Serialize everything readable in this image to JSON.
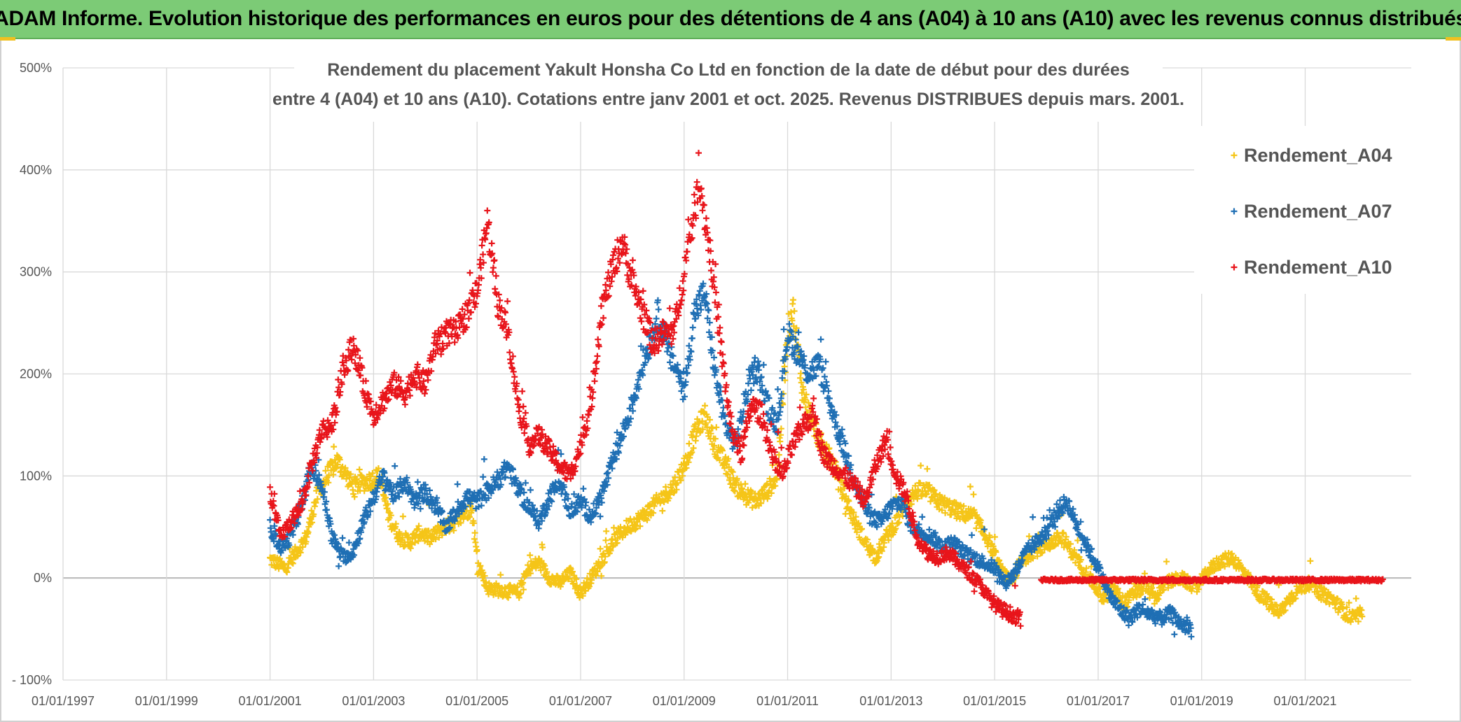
{
  "banner": {
    "title": "ADAM Informe. Evolution historique des performances en euros pour des détentions de 4 ans (A04) à 10 ans (A10) avec les revenus connus distribués"
  },
  "chart_data": {
    "type": "scatter",
    "title_line1": "Rendement du placement Yakult Honsha Co Ltd en fonction de la date de début pour des durées",
    "title_line2": "entre 4 (A04) et 10 ans (A10). Cotations entre janv 2001 et oct. 2025. Revenus DISTRIBUES depuis mars. 2001.",
    "xlabel": "",
    "ylabel": "",
    "x_tick_labels": [
      "01/01/1997",
      "01/01/1999",
      "01/01/2001",
      "01/01/2003",
      "01/01/2005",
      "01/01/2007",
      "01/01/2009",
      "01/01/2011",
      "01/01/2013",
      "01/01/2015",
      "01/01/2017",
      "01/01/2019",
      "01/01/2021"
    ],
    "x_range": [
      "01/01/1997",
      "31/12/2022"
    ],
    "y_tick_labels": [
      "- 100%",
      "0%",
      "100%",
      "200%",
      "300%",
      "400%",
      "500%"
    ],
    "y_range": [
      -100,
      500
    ],
    "y_unit": "%",
    "grid": true,
    "legend_position": "top-right",
    "series": [
      {
        "name": "Rendement_A04",
        "color": "#f5c518",
        "points": [
          [
            2001.0,
            18
          ],
          [
            2001.3,
            10
          ],
          [
            2001.7,
            40
          ],
          [
            2001.9,
            80
          ],
          [
            2002.1,
            100
          ],
          [
            2002.3,
            115
          ],
          [
            2002.6,
            90
          ],
          [
            2002.9,
            95
          ],
          [
            2003.1,
            100
          ],
          [
            2003.3,
            60
          ],
          [
            2003.5,
            40
          ],
          [
            2003.7,
            35
          ],
          [
            2003.9,
            45
          ],
          [
            2004.1,
            38
          ],
          [
            2004.3,
            48
          ],
          [
            2004.6,
            55
          ],
          [
            2004.9,
            70
          ],
          [
            2005.0,
            18
          ],
          [
            2005.2,
            -10
          ],
          [
            2005.5,
            -12
          ],
          [
            2005.8,
            -15
          ],
          [
            2006.0,
            10
          ],
          [
            2006.2,
            15
          ],
          [
            2006.4,
            0
          ],
          [
            2006.6,
            -5
          ],
          [
            2006.8,
            5
          ],
          [
            2007.0,
            -15
          ],
          [
            2007.2,
            0
          ],
          [
            2007.5,
            25
          ],
          [
            2007.7,
            40
          ],
          [
            2007.9,
            50
          ],
          [
            2008.2,
            60
          ],
          [
            2008.5,
            75
          ],
          [
            2008.8,
            90
          ],
          [
            2009.0,
            110
          ],
          [
            2009.2,
            140
          ],
          [
            2009.4,
            160
          ],
          [
            2009.6,
            130
          ],
          [
            2009.8,
            110
          ],
          [
            2010.0,
            90
          ],
          [
            2010.2,
            80
          ],
          [
            2010.4,
            75
          ],
          [
            2010.6,
            85
          ],
          [
            2010.8,
            100
          ],
          [
            2011.0,
            240
          ],
          [
            2011.1,
            265
          ],
          [
            2011.3,
            180
          ],
          [
            2011.5,
            150
          ],
          [
            2011.7,
            125
          ],
          [
            2011.9,
            110
          ],
          [
            2012.1,
            80
          ],
          [
            2012.3,
            55
          ],
          [
            2012.5,
            35
          ],
          [
            2012.7,
            20
          ],
          [
            2012.9,
            40
          ],
          [
            2013.1,
            55
          ],
          [
            2013.3,
            75
          ],
          [
            2013.5,
            85
          ],
          [
            2013.7,
            85
          ],
          [
            2013.9,
            75
          ],
          [
            2014.1,
            70
          ],
          [
            2014.3,
            65
          ],
          [
            2014.6,
            60
          ],
          [
            2014.9,
            35
          ],
          [
            2015.1,
            10
          ],
          [
            2015.3,
            -5
          ],
          [
            2015.5,
            15
          ],
          [
            2015.7,
            25
          ],
          [
            2015.9,
            30
          ],
          [
            2016.1,
            35
          ],
          [
            2016.3,
            40
          ],
          [
            2016.5,
            25
          ],
          [
            2016.7,
            10
          ],
          [
            2016.9,
            -5
          ],
          [
            2017.1,
            -20
          ],
          [
            2017.3,
            -10
          ],
          [
            2017.5,
            -25
          ],
          [
            2017.7,
            -15
          ],
          [
            2017.9,
            -8
          ],
          [
            2018.1,
            -20
          ],
          [
            2018.3,
            -5
          ],
          [
            2018.6,
            0
          ],
          [
            2018.9,
            -10
          ],
          [
            2019.1,
            5
          ],
          [
            2019.3,
            15
          ],
          [
            2019.6,
            20
          ],
          [
            2019.9,
            0
          ],
          [
            2020.1,
            -15
          ],
          [
            2020.3,
            -25
          ],
          [
            2020.5,
            -35
          ],
          [
            2020.7,
            -20
          ],
          [
            2020.9,
            -10
          ],
          [
            2021.1,
            -5
          ],
          [
            2021.3,
            -15
          ],
          [
            2021.5,
            -20
          ],
          [
            2021.7,
            -30
          ],
          [
            2021.9,
            -40
          ],
          [
            2022.1,
            -35
          ]
        ]
      },
      {
        "name": "Rendement_A07",
        "color": "#1f6fb4",
        "points": [
          [
            2001.0,
            50
          ],
          [
            2001.2,
            30
          ],
          [
            2001.4,
            40
          ],
          [
            2001.6,
            70
          ],
          [
            2001.8,
            110
          ],
          [
            2002.0,
            90
          ],
          [
            2002.2,
            40
          ],
          [
            2002.4,
            20
          ],
          [
            2002.6,
            25
          ],
          [
            2002.8,
            55
          ],
          [
            2003.0,
            80
          ],
          [
            2003.2,
            100
          ],
          [
            2003.4,
            80
          ],
          [
            2003.6,
            95
          ],
          [
            2003.8,
            75
          ],
          [
            2004.0,
            85
          ],
          [
            2004.2,
            70
          ],
          [
            2004.4,
            50
          ],
          [
            2004.6,
            65
          ],
          [
            2004.8,
            80
          ],
          [
            2005.0,
            75
          ],
          [
            2005.2,
            85
          ],
          [
            2005.4,
            95
          ],
          [
            2005.6,
            110
          ],
          [
            2005.8,
            85
          ],
          [
            2006.0,
            70
          ],
          [
            2006.2,
            55
          ],
          [
            2006.4,
            80
          ],
          [
            2006.6,
            95
          ],
          [
            2006.8,
            65
          ],
          [
            2007.0,
            75
          ],
          [
            2007.2,
            60
          ],
          [
            2007.4,
            80
          ],
          [
            2007.6,
            110
          ],
          [
            2007.8,
            140
          ],
          [
            2008.0,
            170
          ],
          [
            2008.2,
            210
          ],
          [
            2008.4,
            240
          ],
          [
            2008.5,
            260
          ],
          [
            2008.7,
            220
          ],
          [
            2008.9,
            200
          ],
          [
            2009.0,
            180
          ],
          [
            2009.2,
            260
          ],
          [
            2009.4,
            280
          ],
          [
            2009.6,
            200
          ],
          [
            2009.8,
            150
          ],
          [
            2010.0,
            130
          ],
          [
            2010.2,
            180
          ],
          [
            2010.4,
            210
          ],
          [
            2010.6,
            170
          ],
          [
            2010.8,
            150
          ],
          [
            2011.0,
            240
          ],
          [
            2011.2,
            220
          ],
          [
            2011.4,
            200
          ],
          [
            2011.6,
            210
          ],
          [
            2011.8,
            175
          ],
          [
            2012.0,
            140
          ],
          [
            2012.2,
            110
          ],
          [
            2012.4,
            80
          ],
          [
            2012.6,
            60
          ],
          [
            2012.8,
            55
          ],
          [
            2013.0,
            70
          ],
          [
            2013.2,
            75
          ],
          [
            2013.4,
            50
          ],
          [
            2013.6,
            45
          ],
          [
            2013.8,
            40
          ],
          [
            2014.0,
            30
          ],
          [
            2014.2,
            35
          ],
          [
            2014.4,
            25
          ],
          [
            2014.6,
            20
          ],
          [
            2014.8,
            15
          ],
          [
            2015.0,
            10
          ],
          [
            2015.2,
            -5
          ],
          [
            2015.4,
            5
          ],
          [
            2015.6,
            25
          ],
          [
            2015.8,
            35
          ],
          [
            2016.0,
            45
          ],
          [
            2016.2,
            65
          ],
          [
            2016.4,
            75
          ],
          [
            2016.6,
            50
          ],
          [
            2016.8,
            30
          ],
          [
            2017.0,
            10
          ],
          [
            2017.2,
            -15
          ],
          [
            2017.4,
            -30
          ],
          [
            2017.6,
            -40
          ],
          [
            2017.8,
            -30
          ],
          [
            2018.0,
            -35
          ],
          [
            2018.2,
            -40
          ],
          [
            2018.4,
            -35
          ],
          [
            2018.6,
            -45
          ],
          [
            2018.8,
            -50
          ]
        ]
      },
      {
        "name": "Rendement_A10",
        "color": "#e8151b",
        "points": [
          [
            2001.0,
            85
          ],
          [
            2001.2,
            40
          ],
          [
            2001.4,
            55
          ],
          [
            2001.6,
            70
          ],
          [
            2001.8,
            110
          ],
          [
            2002.0,
            145
          ],
          [
            2002.2,
            150
          ],
          [
            2002.4,
            200
          ],
          [
            2002.6,
            230
          ],
          [
            2002.8,
            190
          ],
          [
            2003.0,
            160
          ],
          [
            2003.2,
            175
          ],
          [
            2003.4,
            190
          ],
          [
            2003.6,
            180
          ],
          [
            2003.8,
            200
          ],
          [
            2004.0,
            190
          ],
          [
            2004.2,
            230
          ],
          [
            2004.4,
            240
          ],
          [
            2004.6,
            240
          ],
          [
            2004.8,
            260
          ],
          [
            2005.0,
            280
          ],
          [
            2005.2,
            350
          ],
          [
            2005.4,
            270
          ],
          [
            2005.6,
            240
          ],
          [
            2005.8,
            170
          ],
          [
            2006.0,
            130
          ],
          [
            2006.2,
            140
          ],
          [
            2006.4,
            125
          ],
          [
            2006.6,
            110
          ],
          [
            2006.8,
            100
          ],
          [
            2007.0,
            130
          ],
          [
            2007.2,
            170
          ],
          [
            2007.4,
            260
          ],
          [
            2007.6,
            300
          ],
          [
            2007.8,
            330
          ],
          [
            2008.0,
            290
          ],
          [
            2008.2,
            260
          ],
          [
            2008.4,
            230
          ],
          [
            2008.6,
            240
          ],
          [
            2008.8,
            240
          ],
          [
            2009.0,
            300
          ],
          [
            2009.2,
            360
          ],
          [
            2009.3,
            390
          ],
          [
            2009.5,
            320
          ],
          [
            2009.7,
            230
          ],
          [
            2009.9,
            150
          ],
          [
            2010.1,
            120
          ],
          [
            2010.3,
            170
          ],
          [
            2010.5,
            160
          ],
          [
            2010.7,
            120
          ],
          [
            2010.9,
            100
          ],
          [
            2011.1,
            130
          ],
          [
            2011.3,
            150
          ],
          [
            2011.5,
            160
          ],
          [
            2011.7,
            120
          ],
          [
            2011.9,
            110
          ],
          [
            2012.1,
            100
          ],
          [
            2012.3,
            90
          ],
          [
            2012.5,
            75
          ],
          [
            2012.7,
            110
          ],
          [
            2012.9,
            135
          ],
          [
            2013.1,
            100
          ],
          [
            2013.3,
            80
          ],
          [
            2013.5,
            40
          ],
          [
            2013.7,
            25
          ],
          [
            2013.9,
            20
          ],
          [
            2014.1,
            25
          ],
          [
            2014.3,
            15
          ],
          [
            2014.5,
            5
          ],
          [
            2014.7,
            -5
          ],
          [
            2014.9,
            -20
          ],
          [
            2015.1,
            -30
          ],
          [
            2015.3,
            -35
          ],
          [
            2015.5,
            -40
          ]
        ]
      }
    ],
    "flat_segment": {
      "series": "Rendement_A10",
      "from": 2015.9,
      "to": 2022.5,
      "value": -2
    }
  }
}
